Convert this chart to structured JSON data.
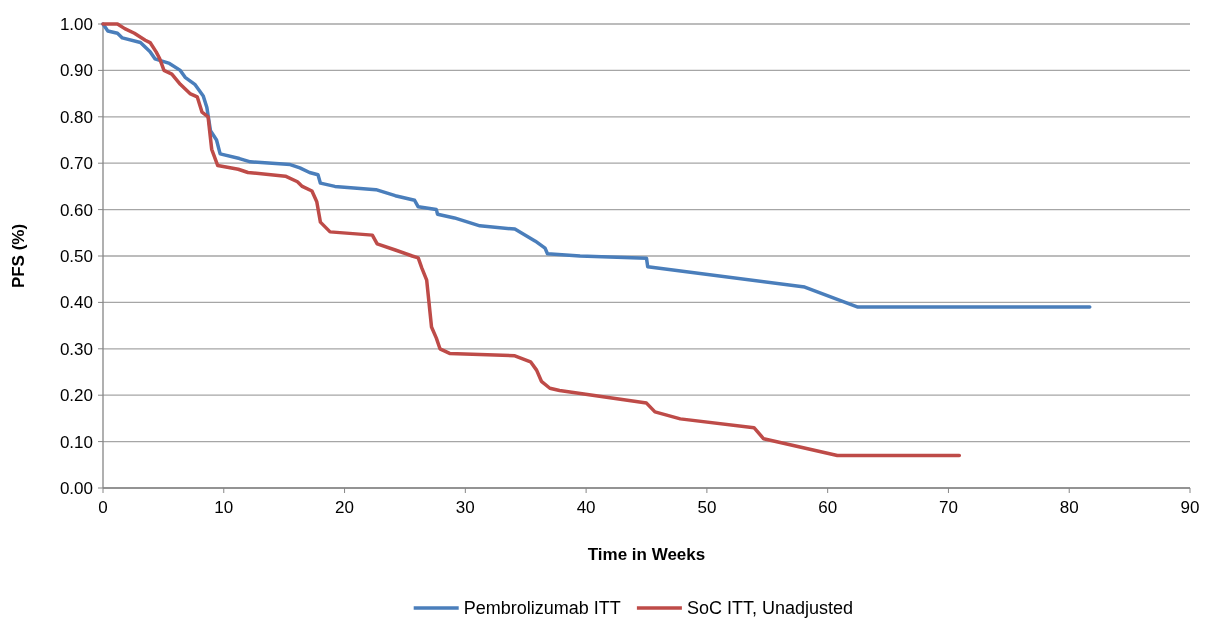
{
  "chart_data": {
    "type": "line",
    "xlabel": "Time in Weeks",
    "ylabel": "PFS (%)",
    "xlim": [
      0,
      90
    ],
    "xticks": [
      0,
      10,
      20,
      30,
      40,
      50,
      60,
      70,
      80,
      90
    ],
    "ylim": [
      0,
      1
    ],
    "yticks": [
      {
        "value": 0,
        "label": "0.00"
      },
      {
        "value": 0.1,
        "label": "0.10"
      },
      {
        "value": 0.2,
        "label": "0.20"
      },
      {
        "value": 0.3,
        "label": "0.30"
      },
      {
        "value": 0.4,
        "label": "0.40"
      },
      {
        "value": 0.5,
        "label": "0.50"
      },
      {
        "value": 0.6,
        "label": "0.60"
      },
      {
        "value": 0.7,
        "label": "0.70"
      },
      {
        "value": 0.8,
        "label": "0.80"
      },
      {
        "value": 0.9,
        "label": "0.90"
      },
      {
        "value": 1,
        "label": "1.00"
      }
    ],
    "grid": "y",
    "legend": "bottom",
    "marker": "none",
    "line_style": "solid",
    "series": [
      {
        "name": "Pembrolizumab ITT",
        "color": "#4a7ebb",
        "x": [
          0,
          0.4,
          1.2,
          1.6,
          3.1,
          3.9,
          4.3,
          5.5,
          6.4,
          6.8,
          7.6,
          8.3,
          8.6,
          8.9,
          9.4,
          9.7,
          11.3,
          12.2,
          15.5,
          16.3,
          17.1,
          17.8,
          18,
          19.2,
          22.6,
          24.2,
          25.8,
          26.1,
          27.6,
          27.7,
          29.1,
          31.2,
          34.1,
          35.8,
          36.6,
          36.8,
          39.5,
          45,
          45.1,
          58.1,
          62.5,
          81.7
        ],
        "values": [
          1,
          0.985,
          0.98,
          0.97,
          0.96,
          0.94,
          0.925,
          0.915,
          0.9,
          0.885,
          0.87,
          0.845,
          0.82,
          0.77,
          0.75,
          0.72,
          0.71,
          0.703,
          0.697,
          0.69,
          0.68,
          0.675,
          0.657,
          0.65,
          0.643,
          0.63,
          0.62,
          0.606,
          0.6,
          0.59,
          0.582,
          0.565,
          0.558,
          0.532,
          0.517,
          0.505,
          0.5,
          0.495,
          0.477,
          0.433,
          0.39,
          0.39
        ]
      },
      {
        "name": "SoC ITT, Unadjusted",
        "color": "#be4b48",
        "x": [
          0,
          1.2,
          1.8,
          2.6,
          3.5,
          3.9,
          4.4,
          4.7,
          5.05,
          5.7,
          6.4,
          7.2,
          7.8,
          8.2,
          8.7,
          9,
          9.5,
          11.2,
          12,
          15.1,
          16.1,
          16.5,
          17.3,
          17.7,
          18,
          18.8,
          22.3,
          22.7,
          24.2,
          25.6,
          26.1,
          26.4,
          26.8,
          27.2,
          27.6,
          27.9,
          28.7,
          34.1,
          35.4,
          35.9,
          36.3,
          37,
          37.8,
          45,
          45.7,
          47.8,
          53.9,
          54.7,
          60.8,
          70.9
        ],
        "values": [
          1,
          1,
          0.99,
          0.98,
          0.965,
          0.96,
          0.94,
          0.925,
          0.9,
          0.892,
          0.87,
          0.85,
          0.843,
          0.81,
          0.8,
          0.73,
          0.695,
          0.687,
          0.68,
          0.672,
          0.66,
          0.65,
          0.64,
          0.617,
          0.573,
          0.552,
          0.545,
          0.526,
          0.513,
          0.5,
          0.496,
          0.474,
          0.448,
          0.347,
          0.323,
          0.3,
          0.29,
          0.285,
          0.272,
          0.254,
          0.23,
          0.215,
          0.21,
          0.183,
          0.164,
          0.149,
          0.13,
          0.106,
          0.07,
          0.07
        ]
      }
    ]
  }
}
